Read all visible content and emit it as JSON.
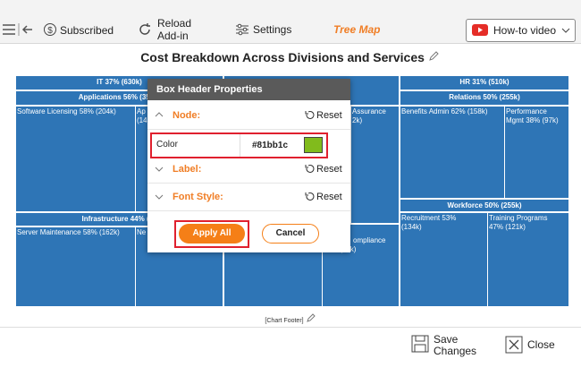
{
  "toolbar": {
    "subscribed": "Subscribed",
    "reload": [
      "Reload",
      "Add-in"
    ],
    "settings": "Settings",
    "chart_type": "Tree Map",
    "video": "How-to video"
  },
  "title": "Cost Breakdown Across Divisions and Services",
  "treemap": {
    "headers": [
      "IT 37% (630k)",
      "HR 31% (510k)",
      "Applications 56% (354k)",
      "Relations 50% (255k)",
      "Infrastructure 44% (28",
      "Workforce 50% (255k)"
    ],
    "leaves": [
      [
        "Software Licensing 58% (204k)"
      ],
      [
        "Ap",
        "(14"
      ],
      [
        "Assurance",
        "2k)"
      ],
      [
        "Benefits Admin 62% (158k)"
      ],
      [
        "Performance",
        "Mgmt 38% (97k)"
      ],
      [
        "Server Maintenance 58% (162k)"
      ],
      [
        "Ne"
      ],
      [
        "(113k)"
      ],
      [
        "ompliance",
        "44% (88k)"
      ],
      [
        "Recruitment 53%",
        "(134k)"
      ],
      [
        "Training Programs",
        "47% (121k)"
      ]
    ],
    "footer": "[Chart Footer]"
  },
  "dialog": {
    "title": "Box Header Properties",
    "sections": [
      "Node:",
      "Label:",
      "Font Style:"
    ],
    "reset": "Reset",
    "color_label": "Color",
    "color_value": "#81bb1c",
    "apply": "Apply All",
    "cancel": "Cancel"
  },
  "bottom": {
    "save": [
      "Save",
      "Changes"
    ],
    "close": "Close"
  }
}
